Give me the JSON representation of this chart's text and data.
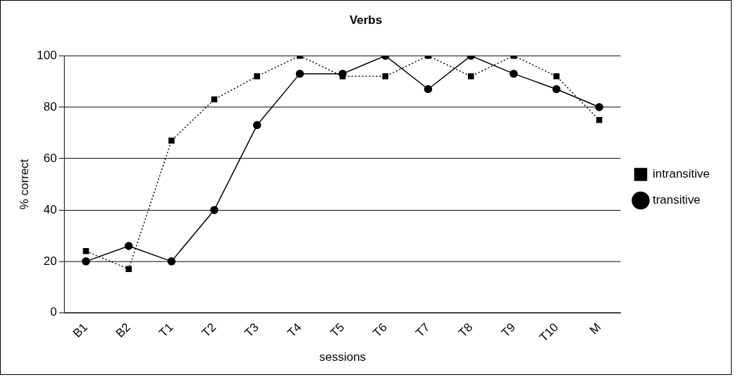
{
  "chart_data": {
    "type": "line",
    "title": "Verbs",
    "xlabel": "sessions",
    "ylabel": "% correct",
    "categories": [
      "B1",
      "B2",
      "T1",
      "T2",
      "T3",
      "T4",
      "T5",
      "T6",
      "T7",
      "T8",
      "T9",
      "T10",
      "M"
    ],
    "series": [
      {
        "name": "intransitive",
        "color": "#000000",
        "marker": "square",
        "line_style": "dotted",
        "values": [
          24,
          17,
          67,
          83,
          92,
          100,
          92,
          92,
          100,
          92,
          100,
          92,
          75
        ]
      },
      {
        "name": "transitive",
        "color": "#000000",
        "marker": "circle",
        "line_style": "solid",
        "values": [
          20,
          26,
          20,
          40,
          73,
          93,
          93,
          100,
          87,
          100,
          93,
          87,
          80
        ]
      }
    ],
    "ylim": [
      0,
      100
    ],
    "yticks": [
      0,
      20,
      40,
      60,
      80,
      100
    ],
    "grid": "y",
    "legend": "right"
  }
}
